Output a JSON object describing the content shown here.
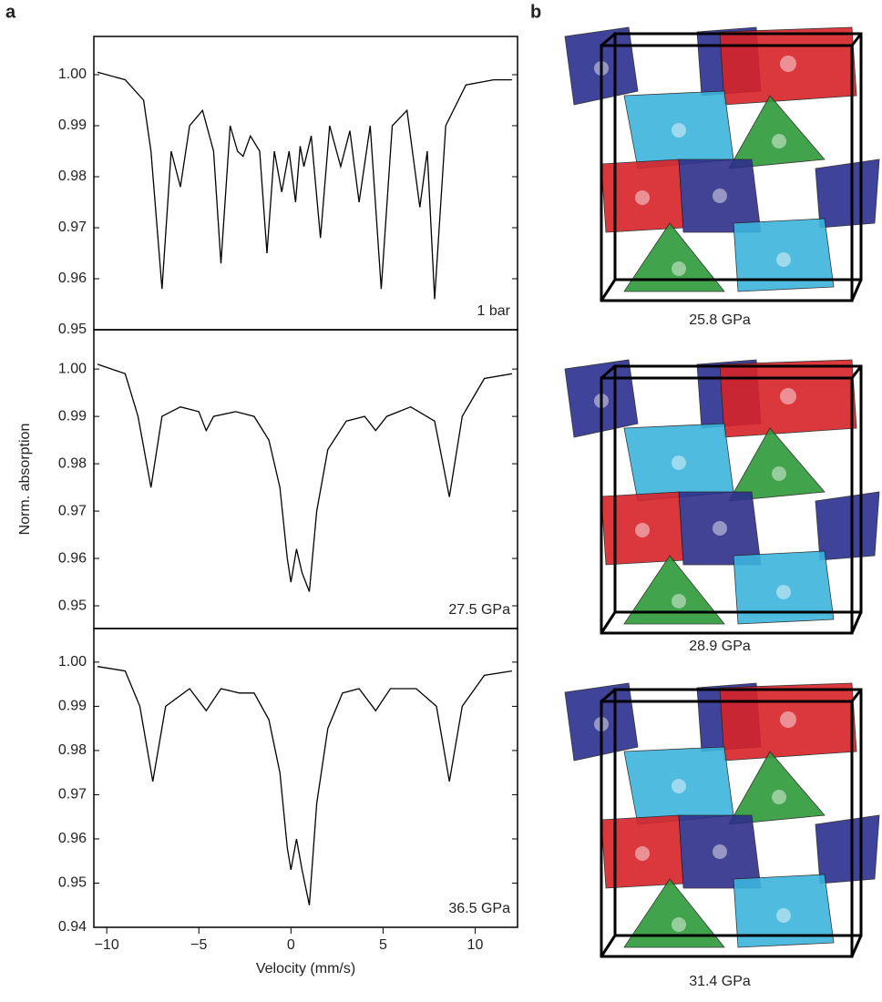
{
  "panel_labels": [
    "a",
    "b"
  ],
  "chart_data": [
    {
      "type": "line",
      "annotation": "1 bar",
      "color": "#000000",
      "x": [
        -10.5,
        -9,
        -8,
        -7.6,
        -7,
        -6.5,
        -6,
        -5.5,
        -4.8,
        -4.2,
        -3.8,
        -3.3,
        -2.9,
        -2.6,
        -2.2,
        -1.7,
        -1.3,
        -0.9,
        -0.5,
        -0.1,
        0.25,
        0.5,
        0.7,
        1.1,
        1.6,
        2.1,
        2.7,
        3.2,
        3.7,
        4.3,
        4.9,
        5.5,
        6.3,
        7.0,
        7.4,
        7.8,
        8.4,
        9.5,
        11,
        12
      ],
      "values": [
        1.0005,
        0.999,
        0.995,
        0.985,
        0.958,
        0.985,
        0.978,
        0.99,
        0.993,
        0.985,
        0.963,
        0.99,
        0.985,
        0.984,
        0.988,
        0.985,
        0.965,
        0.985,
        0.977,
        0.985,
        0.975,
        0.986,
        0.982,
        0.988,
        0.968,
        0.99,
        0.982,
        0.989,
        0.975,
        0.99,
        0.958,
        0.99,
        0.993,
        0.974,
        0.985,
        0.956,
        0.99,
        0.998,
        0.999,
        0.999
      ],
      "xlim": [
        -10.7,
        12.3
      ],
      "ylim": [
        0.95,
        1.0075
      ],
      "yticks": [
        0.95,
        0.96,
        0.97,
        0.98,
        0.99,
        {
          "value": 1.0,
          "label": "1.00"
        }
      ]
    },
    {
      "type": "line",
      "annotation": "27.5 GPa",
      "color": "#000000",
      "y_label": "Norm. absorption",
      "x": [
        -10.5,
        -9,
        -8.3,
        -7.6,
        -7,
        -6,
        -5,
        -4.6,
        -4.2,
        -3,
        -2,
        -1.2,
        -0.6,
        -0.2,
        0,
        0.3,
        0.6,
        1.0,
        1.4,
        2,
        3,
        4,
        4.6,
        5.2,
        6.5,
        7.8,
        8.6,
        9.3,
        10.5,
        12
      ],
      "values": [
        1.001,
        0.999,
        0.99,
        0.975,
        0.99,
        0.992,
        0.991,
        0.987,
        0.99,
        0.991,
        0.99,
        0.985,
        0.975,
        0.96,
        0.955,
        0.962,
        0.957,
        0.953,
        0.97,
        0.983,
        0.989,
        0.99,
        0.987,
        0.99,
        0.992,
        0.989,
        0.973,
        0.99,
        0.998,
        0.999
      ],
      "xlim": [
        -10.7,
        12.3
      ],
      "ylim": [
        0.9452,
        1.0083
      ],
      "yticks": [
        0.95,
        0.96,
        0.97,
        0.98,
        0.99,
        {
          "value": 1.0,
          "label": "1.00"
        }
      ]
    },
    {
      "type": "line",
      "annotation": "36.5 GPa",
      "color": "#000000",
      "x_label": "Velocity (mm/s)",
      "x": [
        -10.5,
        -9,
        -8.2,
        -7.5,
        -6.8,
        -5.5,
        -4.6,
        -3.8,
        -2.8,
        -2,
        -1.2,
        -0.6,
        -0.2,
        0,
        0.3,
        0.6,
        1.0,
        1.4,
        2,
        2.8,
        3.7,
        4.6,
        5.4,
        6.8,
        7.9,
        8.6,
        9.3,
        10.5,
        12
      ],
      "values": [
        0.999,
        0.998,
        0.99,
        0.973,
        0.99,
        0.994,
        0.989,
        0.994,
        0.993,
        0.993,
        0.987,
        0.975,
        0.958,
        0.953,
        0.96,
        0.953,
        0.945,
        0.968,
        0.985,
        0.993,
        0.994,
        0.989,
        0.994,
        0.994,
        0.99,
        0.973,
        0.99,
        0.997,
        0.998
      ],
      "xlim": [
        -10.7,
        12.3
      ],
      "ylim": [
        0.94,
        1.0076
      ],
      "yticks": [
        0.94,
        0.95,
        0.96,
        0.97,
        0.98,
        0.99,
        {
          "value": 1.0,
          "label": "1.00"
        }
      ],
      "xticks": [
        {
          "value": -10,
          "label": "−10"
        },
        {
          "value": -5,
          "label": "−5"
        },
        0,
        5,
        10
      ]
    }
  ],
  "structures": [
    {
      "label": "25.8 GPa"
    },
    {
      "label": "28.9 GPa"
    },
    {
      "label": "31.4 GPa"
    }
  ]
}
